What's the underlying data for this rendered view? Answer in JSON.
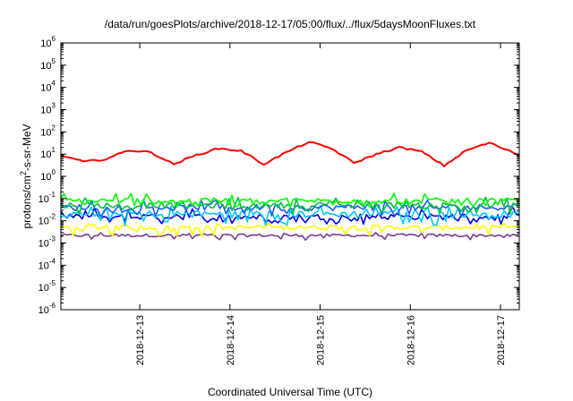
{
  "chart_data": {
    "type": "line",
    "title": "/data/run/goesPlots/archive/2018-12-17/05:00/flux/../flux/5daysMoonFluxes.txt",
    "xlabel": "Coordinated Universal Time (UTC)",
    "ylabel": "protons/cm²-s-sr-MeV",
    "ylabel_parts": [
      "protons/cm",
      "2",
      "-s-sr-MeV"
    ],
    "yscale": "log",
    "ylim_exponents": [
      -6,
      6
    ],
    "ytick_base": "10",
    "yticks": [
      -6,
      -5,
      -4,
      -3,
      -2,
      -1,
      0,
      1,
      2,
      3,
      4,
      5,
      6
    ],
    "xlim": [
      "2018-12-12 03:00",
      "2018-12-17 05:00"
    ],
    "xticks": [
      {
        "label": "2018-12-13",
        "value": "2018-12-13 00:00"
      },
      {
        "label": "2018-12-14",
        "value": "2018-12-14 00:00"
      },
      {
        "label": "2018-12-15",
        "value": "2018-12-15 00:00"
      },
      {
        "label": "2018-12-16",
        "value": "2018-12-16 00:00"
      },
      {
        "label": "2018-12-17",
        "value": "2018-12-17 00:00"
      }
    ],
    "grid": false,
    "legend": "none",
    "series": [
      {
        "color": "#ff0000",
        "x": [
          "2018-12-12 03:00",
          "2018-12-12 09:00",
          "2018-12-12 15:00",
          "2018-12-12 21:00",
          "2018-12-13 03:00",
          "2018-12-13 09:00",
          "2018-12-13 15:00",
          "2018-12-13 21:00",
          "2018-12-14 03:00",
          "2018-12-14 09:00",
          "2018-12-14 15:00",
          "2018-12-14 21:00",
          "2018-12-15 03:00",
          "2018-12-15 09:00",
          "2018-12-15 15:00",
          "2018-12-15 21:00",
          "2018-12-16 03:00",
          "2018-12-16 09:00",
          "2018-12-16 15:00",
          "2018-12-16 21:00",
          "2018-12-17 05:00"
        ],
        "y": [
          9,
          4.5,
          6,
          15,
          12,
          3.5,
          9,
          18,
          14,
          3.5,
          12,
          35,
          18,
          4,
          10,
          20,
          13,
          3,
          15,
          32,
          9
        ]
      },
      {
        "color": "#00ff00",
        "y_level": 0.08,
        "y_min": 0.04,
        "y_max": 0.2
      },
      {
        "color": "#00c040",
        "y_level": 0.05,
        "y_min": 0.02,
        "y_max": 0.12
      },
      {
        "color": "#1c5cff",
        "y_level": 0.04,
        "y_min": 0.015,
        "y_max": 0.1
      },
      {
        "color": "#00c8ff",
        "y_level": 0.02,
        "y_min": 0.006,
        "y_max": 0.05
      },
      {
        "color": "#0000e6",
        "y_level": 0.015,
        "y_min": 0.007,
        "y_max": 0.04
      },
      {
        "color": "#ffff00",
        "y_level": 0.005,
        "y_min": 0.002,
        "y_max": 0.008
      },
      {
        "color": "#7a3c8c",
        "y_level": 0.0022,
        "y_min": 0.0013,
        "y_max": 0.003
      }
    ]
  }
}
